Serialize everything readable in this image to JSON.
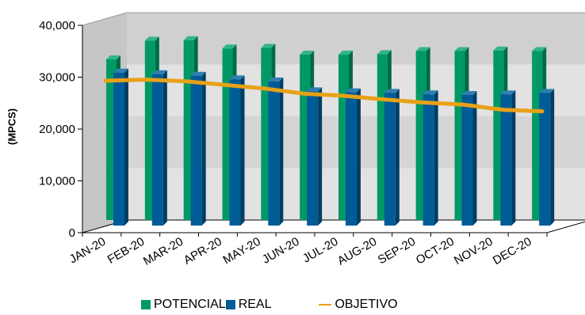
{
  "chart_data": {
    "type": "bar",
    "title": "",
    "xlabel": "",
    "ylabel": "(MPCS)",
    "ylim": [
      0,
      40000
    ],
    "yticks": [
      0,
      10000,
      20000,
      30000,
      40000
    ],
    "ytick_labels": [
      "0",
      "10,000",
      "20,000",
      "30,000",
      "40,000"
    ],
    "categories": [
      "JAN-20",
      "FEB-20",
      "MAR-20",
      "APR-20",
      "MAY-20",
      "JUN-20",
      "JUL-20",
      "AUG-20",
      "SEP-20",
      "OCT-20",
      "NOV-20",
      "DEC-20"
    ],
    "series": [
      {
        "name": "POTENCIAL",
        "type": "bar",
        "color": "#009966",
        "values": [
          31000,
          34600,
          34700,
          33100,
          33200,
          31900,
          31900,
          32000,
          32600,
          32600,
          32700,
          32600
        ]
      },
      {
        "name": "REAL",
        "type": "bar",
        "color": "#005C96",
        "values": [
          29500,
          29200,
          28900,
          28200,
          27800,
          25900,
          25700,
          25600,
          25300,
          25200,
          25300,
          25600
        ]
      },
      {
        "name": "OBJETIVO",
        "type": "line",
        "color": "#E8A117",
        "values": [
          28400,
          28600,
          28300,
          27600,
          26900,
          25900,
          25500,
          24800,
          24200,
          23800,
          22800,
          22500
        ]
      }
    ],
    "legend_position": "bottom",
    "grid": true
  }
}
